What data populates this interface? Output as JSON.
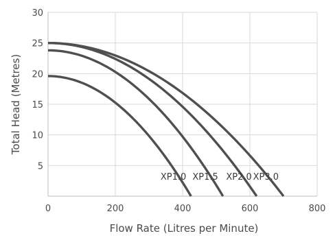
{
  "chart_data": {
    "type": "line",
    "title": "",
    "xlabel": "Flow Rate (Litres per Minute)",
    "ylabel": "Total Head (Metres)",
    "xlim": [
      0,
      800
    ],
    "ylim": [
      0,
      30
    ],
    "x_ticks": [
      0,
      200,
      400,
      600,
      800
    ],
    "y_ticks": [
      5,
      10,
      15,
      20,
      25,
      30
    ],
    "x_tick_labels": [
      "0",
      "200",
      "400",
      "600",
      "800"
    ],
    "y_tick_labels": [
      "5",
      "10",
      "15",
      "20",
      "25",
      "30"
    ],
    "grid": true,
    "colors": {
      "curve": "#4f4f4f",
      "grid": "#d9d9d9",
      "text": "#4a4a4a"
    },
    "series": [
      {
        "name": "XP1.0",
        "max_head": 19.6,
        "max_flow": 425
      },
      {
        "name": "XP1.5",
        "max_head": 23.8,
        "max_flow": 520
      },
      {
        "name": "XP2.0",
        "max_head": 25.0,
        "max_flow": 620
      },
      {
        "name": "XP3.0",
        "max_head": 25.0,
        "max_flow": 700
      }
    ]
  }
}
